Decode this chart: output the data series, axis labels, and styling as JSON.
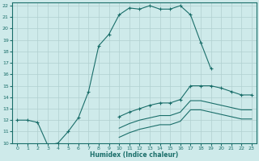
{
  "xlabel": "Humidex (Indice chaleur)",
  "xlim": [
    -0.5,
    23.5
  ],
  "ylim": [
    10,
    22.3
  ],
  "xticks": [
    0,
    1,
    2,
    3,
    4,
    5,
    6,
    7,
    8,
    9,
    10,
    11,
    12,
    13,
    14,
    15,
    16,
    17,
    18,
    19,
    20,
    21,
    22,
    23
  ],
  "yticks": [
    10,
    11,
    12,
    13,
    14,
    15,
    16,
    17,
    18,
    19,
    20,
    21,
    22
  ],
  "bg_color": "#ceeaea",
  "line_color": "#1a6e6a",
  "grid_color": "#b0d0d0",
  "lines": [
    {
      "x": [
        0,
        1,
        2,
        3,
        4,
        5,
        6,
        7,
        8,
        9,
        10,
        11,
        12,
        13,
        14,
        15,
        16,
        17,
        18,
        19
      ],
      "y": [
        12,
        12,
        11.8,
        9.8,
        10,
        11,
        12.2,
        14.5,
        18.5,
        19.5,
        21.2,
        21.8,
        21.7,
        22.0,
        21.7,
        21.7,
        22.0,
        21.2,
        18.8,
        16.5
      ],
      "marker": true
    },
    {
      "x": [
        0,
        1,
        2,
        3,
        4,
        5,
        6,
        7,
        8,
        9,
        10,
        11,
        12,
        13,
        14,
        15,
        16,
        17,
        18,
        19,
        20,
        21,
        22,
        23
      ],
      "y": [
        null,
        null,
        null,
        null,
        null,
        null,
        null,
        null,
        null,
        null,
        12.3,
        12.7,
        13.0,
        13.3,
        13.5,
        13.5,
        13.8,
        15.0,
        15.0,
        15.0,
        14.8,
        14.5,
        14.2,
        14.2
      ],
      "marker": true
    },
    {
      "x": [
        0,
        1,
        2,
        3,
        4,
        5,
        6,
        7,
        8,
        9,
        10,
        11,
        12,
        13,
        14,
        15,
        16,
        17,
        18,
        19,
        20,
        21,
        22,
        23
      ],
      "y": [
        null,
        null,
        null,
        null,
        null,
        null,
        null,
        null,
        null,
        null,
        11.3,
        11.7,
        12.0,
        12.2,
        12.4,
        12.4,
        12.7,
        13.7,
        13.7,
        13.5,
        13.3,
        13.1,
        12.9,
        12.9
      ],
      "marker": false
    },
    {
      "x": [
        0,
        1,
        2,
        3,
        4,
        5,
        6,
        7,
        8,
        9,
        10,
        11,
        12,
        13,
        14,
        15,
        16,
        17,
        18,
        19,
        20,
        21,
        22,
        23
      ],
      "y": [
        null,
        null,
        null,
        null,
        null,
        null,
        null,
        null,
        null,
        null,
        10.5,
        10.9,
        11.2,
        11.4,
        11.6,
        11.6,
        11.9,
        12.9,
        12.9,
        12.7,
        12.5,
        12.3,
        12.1,
        12.1
      ],
      "marker": false
    }
  ]
}
